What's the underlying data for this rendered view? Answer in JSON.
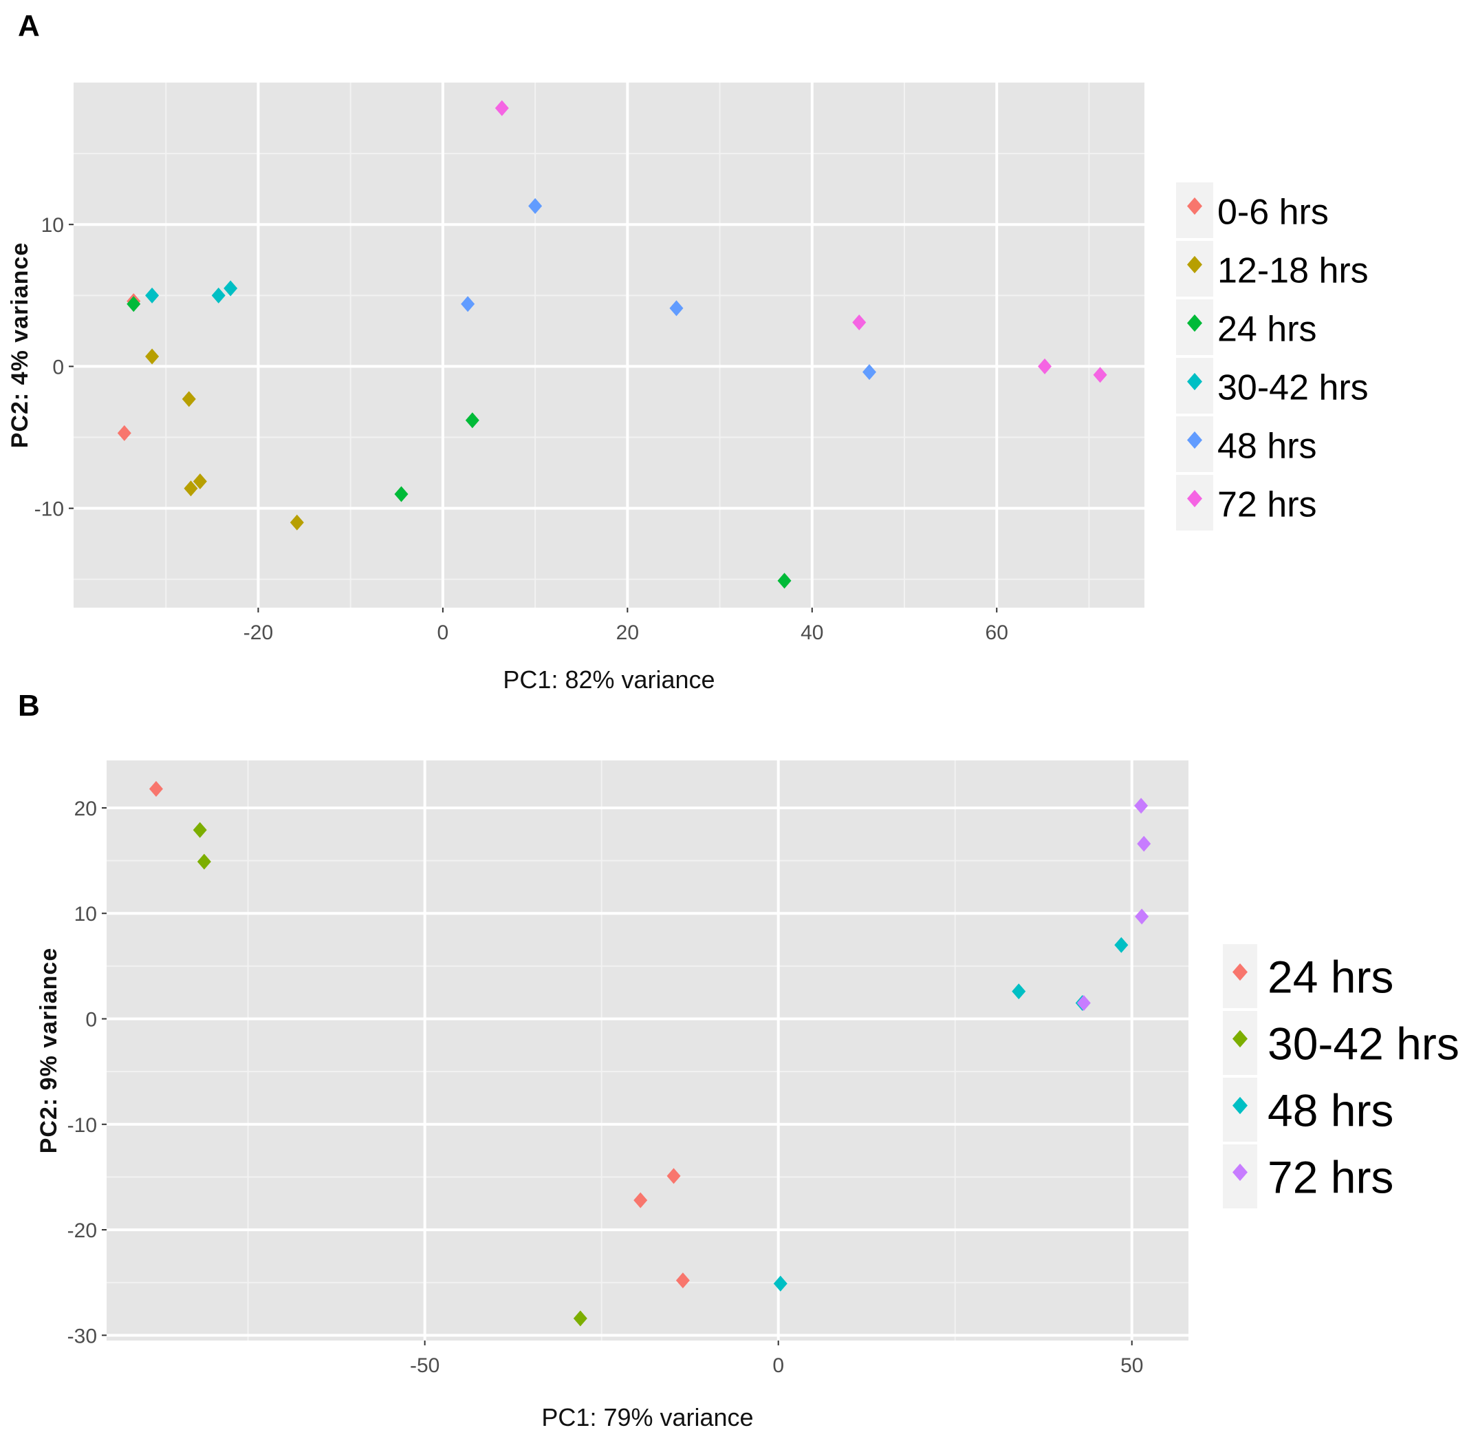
{
  "chart_data": [
    {
      "panel": "A",
      "type": "scatter",
      "xlabel": "PC1: 82% variance",
      "ylabel": "PC2: 4% variance",
      "xlim": [
        -40,
        76
      ],
      "ylim": [
        -17,
        20
      ],
      "xticks": [
        -20,
        0,
        20,
        40,
        60
      ],
      "yticks": [
        -10,
        0,
        10
      ],
      "legend_position": "right",
      "colors": {
        "0-6 hrs": "#F8766D",
        "12-18 hrs": "#B79F00",
        "24 hrs": "#00BA38",
        "30-42 hrs": "#00BFC4",
        "48 hrs": "#619CFF",
        "72 hrs": "#F564E3"
      },
      "series": [
        {
          "name": "0-6 hrs",
          "points": [
            [
              -33.5,
              4.6
            ],
            [
              -34.5,
              -4.7
            ]
          ]
        },
        {
          "name": "12-18 hrs",
          "points": [
            [
              -31.5,
              0.7
            ],
            [
              -27.5,
              -2.3
            ],
            [
              -27.3,
              -8.6
            ],
            [
              -26.3,
              -8.1
            ],
            [
              -15.8,
              -11.0
            ]
          ]
        },
        {
          "name": "24 hrs",
          "points": [
            [
              -33.5,
              4.4
            ],
            [
              -4.5,
              -9.0
            ],
            [
              3.2,
              -3.8
            ],
            [
              37.0,
              -15.1
            ]
          ]
        },
        {
          "name": "30-42 hrs",
          "points": [
            [
              -31.5,
              5.0
            ],
            [
              -24.3,
              5.0
            ],
            [
              -23.0,
              5.5
            ]
          ]
        },
        {
          "name": "48 hrs",
          "points": [
            [
              2.7,
              4.4
            ],
            [
              10.0,
              11.3
            ],
            [
              25.3,
              4.1
            ],
            [
              46.2,
              -0.4
            ]
          ]
        },
        {
          "name": "72 hrs",
          "points": [
            [
              6.4,
              18.2
            ],
            [
              45.1,
              3.1
            ],
            [
              65.2,
              0.0
            ],
            [
              71.2,
              -0.6
            ]
          ]
        }
      ]
    },
    {
      "panel": "B",
      "type": "scatter",
      "xlabel": "PC1: 79% variance",
      "ylabel": "PC2: 9% variance",
      "xlim": [
        -95,
        58
      ],
      "ylim": [
        -30.5,
        24.5
      ],
      "xticks": [
        -50,
        0,
        50
      ],
      "yticks": [
        -30,
        -20,
        -10,
        0,
        10,
        20
      ],
      "legend_position": "right",
      "colors": {
        "24 hrs": "#F8766D",
        "30-42 hrs": "#7CAE00",
        "48 hrs": "#00BFC4",
        "72 hrs": "#C77CFF"
      },
      "series": [
        {
          "name": "24 hrs",
          "points": [
            [
              -88.0,
              21.8
            ],
            [
              -19.5,
              -17.2
            ],
            [
              -14.8,
              -14.9
            ],
            [
              -13.5,
              -24.8
            ]
          ]
        },
        {
          "name": "30-42 hrs",
          "points": [
            [
              -81.8,
              17.9
            ],
            [
              -81.2,
              14.9
            ],
            [
              -28.0,
              -28.4
            ]
          ]
        },
        {
          "name": "48 hrs",
          "points": [
            [
              34.0,
              2.6
            ],
            [
              43.0,
              1.5
            ],
            [
              48.5,
              7.0
            ],
            [
              0.3,
              -25.1
            ]
          ]
        },
        {
          "name": "72 hrs",
          "points": [
            [
              43.2,
              1.5
            ],
            [
              51.3,
              20.2
            ],
            [
              51.7,
              16.6
            ],
            [
              51.4,
              9.7
            ]
          ]
        }
      ]
    }
  ],
  "panels": {
    "a": {
      "label": "A"
    },
    "b": {
      "label": "B"
    }
  }
}
